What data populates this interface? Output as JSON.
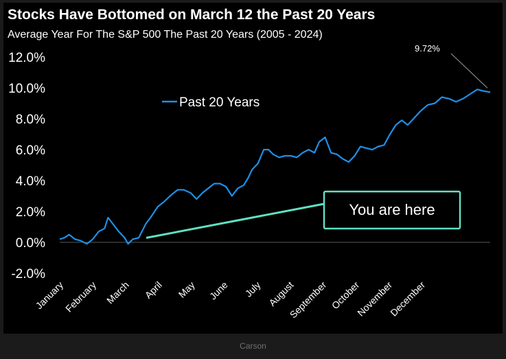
{
  "chart_data": {
    "type": "line",
    "title": "Stocks Have Bottomed on March 12 the Past 20 Years",
    "subtitle": "Average Year For The S&P 500 The Past 20 Years (2005 - 2024)",
    "ylim": [
      -2.0,
      12.0
    ],
    "y_ticks": [
      "12.0%",
      "10.0%",
      "8.0%",
      "6.0%",
      "4.0%",
      "2.0%",
      "0.0%",
      "-2.0%"
    ],
    "x_ticks": [
      "January",
      "February",
      "March",
      "April",
      "May",
      "June",
      "July",
      "August",
      "September",
      "October",
      "November",
      "December"
    ],
    "series": [
      {
        "name": "Past 20 Years",
        "color": "#1e90e8",
        "x": [
          0,
          4,
          8,
          13,
          18,
          23,
          28,
          33,
          38,
          41,
          45,
          50,
          55,
          58,
          62,
          67,
          71,
          73,
          77,
          83,
          88,
          95,
          100,
          105,
          111,
          116,
          121,
          126,
          131,
          136,
          141,
          146,
          151,
          156,
          160,
          163,
          168,
          173,
          177,
          181,
          186,
          191,
          196,
          201,
          206,
          211,
          216,
          220,
          225,
          230,
          235,
          240,
          245,
          250,
          255,
          260,
          265,
          270,
          275,
          280,
          285,
          290,
          295,
          300,
          306,
          312,
          318,
          324,
          330,
          336,
          342,
          348,
          354,
          359,
          365
        ],
        "values": [
          0.2,
          0.3,
          0.5,
          0.2,
          0.1,
          -0.1,
          0.2,
          0.7,
          0.9,
          1.6,
          1.2,
          0.7,
          0.3,
          -0.1,
          0.2,
          0.3,
          0.9,
          1.2,
          1.6,
          2.3,
          2.6,
          3.1,
          3.4,
          3.4,
          3.2,
          2.8,
          3.2,
          3.5,
          3.8,
          3.8,
          3.6,
          3.0,
          3.5,
          3.7,
          4.2,
          4.7,
          5.1,
          6.0,
          6.0,
          5.7,
          5.5,
          5.6,
          5.6,
          5.5,
          5.8,
          6.0,
          5.8,
          6.5,
          6.8,
          5.8,
          5.7,
          5.4,
          5.2,
          5.6,
          6.2,
          6.1,
          6.0,
          6.2,
          6.3,
          7.0,
          7.6,
          7.9,
          7.6,
          8.0,
          8.5,
          8.9,
          9.0,
          9.4,
          9.3,
          9.1,
          9.3,
          9.6,
          9.9,
          9.8,
          9.72
        ]
      }
    ],
    "end_label": "9.72%",
    "callout": {
      "text": "You are here",
      "x": 71,
      "value": 0.2
    },
    "legend": "top-center",
    "grid": false
  },
  "caption": "Carson"
}
